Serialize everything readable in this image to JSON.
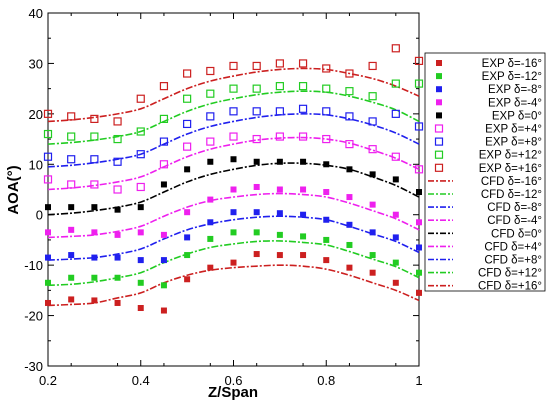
{
  "chart_data": {
    "type": "scatter",
    "xlabel": "Z/Span",
    "ylabel": "AOA(°)",
    "xlim": [
      0.2,
      1.0
    ],
    "ylim": [
      -30,
      40
    ],
    "xticks": [
      "0.2",
      "0.4",
      "0.6",
      "0.8",
      "1"
    ],
    "yticks": [
      "-30",
      "-20",
      "-10",
      "0",
      "10",
      "20",
      "30",
      "40"
    ],
    "legend_position": "right",
    "grid": false,
    "series": [
      {
        "name": "EXP δ=-16°",
        "kind": "marker",
        "fill": "filled",
        "color": "#cc2020",
        "x": [
          0.2,
          0.25,
          0.3,
          0.35,
          0.4,
          0.45,
          0.5,
          0.55,
          0.6,
          0.65,
          0.7,
          0.75,
          0.8,
          0.85,
          0.9,
          0.95,
          1.0
        ],
        "y": [
          -17.5,
          -16.8,
          -17,
          -17.5,
          -18.5,
          -19,
          -12.8,
          -10.5,
          -9.5,
          -7.8,
          -8,
          -8,
          -9,
          -10.5,
          -11.5,
          -13.5,
          -15.5
        ]
      },
      {
        "name": "EXP δ=-12°",
        "kind": "marker",
        "fill": "filled",
        "color": "#22cc22",
        "x": [
          0.2,
          0.25,
          0.3,
          0.35,
          0.4,
          0.45,
          0.5,
          0.55,
          0.6,
          0.65,
          0.7,
          0.75,
          0.8,
          0.85,
          0.9,
          0.95,
          1.0
        ],
        "y": [
          -13.5,
          -12.5,
          -12.5,
          -12.5,
          -13.5,
          -14,
          -8,
          -4.8,
          -3.5,
          -3.5,
          -4,
          -4.3,
          -5,
          -6,
          -8,
          -9.5,
          -11.5
        ]
      },
      {
        "name": "EXP δ=-8°",
        "kind": "marker",
        "fill": "filled",
        "color": "#2020ee",
        "x": [
          0.2,
          0.25,
          0.3,
          0.35,
          0.4,
          0.45,
          0.5,
          0.55,
          0.6,
          0.65,
          0.7,
          0.75,
          0.8,
          0.85,
          0.9,
          0.95,
          1.0
        ],
        "y": [
          -8.5,
          -8,
          -8.5,
          -8.5,
          -9,
          -9,
          -4.5,
          -1.5,
          0.5,
          0.5,
          0.3,
          0,
          -1,
          -2,
          -3.5,
          -4.5,
          -6.5
        ]
      },
      {
        "name": "EXP δ=-4°",
        "kind": "marker",
        "fill": "filled",
        "color": "#ee20ee",
        "x": [
          0.2,
          0.25,
          0.3,
          0.35,
          0.4,
          0.45,
          0.5,
          0.55,
          0.6,
          0.65,
          0.7,
          0.75,
          0.8,
          0.85,
          0.9,
          0.95,
          1.0
        ],
        "y": [
          -3.5,
          -3,
          -3.5,
          -4,
          -3.5,
          -4,
          0.5,
          3,
          5,
          5.5,
          5,
          5,
          4.5,
          3.5,
          2,
          0,
          -1.5
        ]
      },
      {
        "name": "EXP δ=0°",
        "kind": "marker",
        "fill": "filled",
        "color": "#000000",
        "x": [
          0.2,
          0.25,
          0.3,
          0.35,
          0.4,
          0.45,
          0.5,
          0.55,
          0.6,
          0.65,
          0.7,
          0.75,
          0.8,
          0.85,
          0.9,
          0.95,
          1.0
        ],
        "y": [
          1.5,
          1.5,
          1.5,
          1,
          1.5,
          6,
          9,
          10.5,
          11,
          10.5,
          10.5,
          10.5,
          10,
          9,
          8,
          7,
          4.5
        ]
      },
      {
        "name": "EXP δ=+4°",
        "kind": "marker",
        "fill": "hollow",
        "color": "#ee20ee",
        "x": [
          0.2,
          0.25,
          0.3,
          0.35,
          0.4,
          0.45,
          0.5,
          0.55,
          0.6,
          0.65,
          0.7,
          0.75,
          0.8,
          0.85,
          0.9,
          0.95,
          1.0
        ],
        "y": [
          7,
          6,
          6,
          5,
          5.5,
          10,
          13.5,
          14.5,
          15.5,
          15,
          15.5,
          15.5,
          15,
          14,
          13,
          11.5,
          9
        ]
      },
      {
        "name": "EXP δ=+8°",
        "kind": "marker",
        "fill": "hollow",
        "color": "#2020ee",
        "x": [
          0.2,
          0.25,
          0.3,
          0.35,
          0.4,
          0.45,
          0.5,
          0.55,
          0.6,
          0.65,
          0.7,
          0.75,
          0.8,
          0.85,
          0.9,
          0.95,
          1.0
        ],
        "y": [
          11.5,
          11,
          11,
          10.5,
          12,
          14.5,
          18,
          19.5,
          20.5,
          20.5,
          20.5,
          21,
          20.5,
          19.5,
          18.5,
          20,
          17.5
        ]
      },
      {
        "name": "EXP δ=+12°",
        "kind": "marker",
        "fill": "hollow",
        "color": "#22cc22",
        "x": [
          0.2,
          0.25,
          0.3,
          0.35,
          0.4,
          0.45,
          0.5,
          0.55,
          0.6,
          0.65,
          0.7,
          0.75,
          0.8,
          0.85,
          0.9,
          0.95,
          1.0
        ],
        "y": [
          16,
          15.5,
          15.5,
          15,
          16.5,
          19,
          23,
          24,
          25,
          25,
          25.5,
          25.5,
          25,
          24.5,
          23.5,
          26,
          26
        ]
      },
      {
        "name": "EXP δ=+16°",
        "kind": "marker",
        "fill": "hollow",
        "color": "#cc2020",
        "x": [
          0.2,
          0.25,
          0.3,
          0.35,
          0.4,
          0.45,
          0.5,
          0.55,
          0.6,
          0.65,
          0.7,
          0.75,
          0.8,
          0.85,
          0.9,
          0.95,
          1.0
        ],
        "y": [
          20,
          19.5,
          19,
          18.5,
          23,
          25.5,
          28,
          28.5,
          29.5,
          29.5,
          30,
          30,
          29,
          28,
          29.5,
          33,
          30.5
        ]
      },
      {
        "name": "CFD δ=-16°",
        "kind": "line",
        "color": "#cc2020",
        "x": [
          0.2,
          0.25,
          0.3,
          0.35,
          0.4,
          0.45,
          0.5,
          0.55,
          0.6,
          0.65,
          0.7,
          0.75,
          0.8,
          0.85,
          0.9,
          0.95,
          1.0
        ],
        "y": [
          -18,
          -17.8,
          -17.5,
          -16.5,
          -15.5,
          -13.5,
          -12,
          -11,
          -10.5,
          -10.2,
          -10,
          -10.2,
          -10.8,
          -12,
          -13.5,
          -15,
          -17
        ]
      },
      {
        "name": "CFD δ=-12°",
        "kind": "line",
        "color": "#22cc22",
        "x": [
          0.2,
          0.25,
          0.3,
          0.35,
          0.4,
          0.45,
          0.5,
          0.55,
          0.6,
          0.65,
          0.7,
          0.75,
          0.8,
          0.85,
          0.9,
          0.95,
          1.0
        ],
        "y": [
          -14,
          -13.8,
          -13.3,
          -12.5,
          -11.5,
          -9.5,
          -7.8,
          -6.5,
          -5.8,
          -5.3,
          -5.2,
          -5.5,
          -6,
          -7.3,
          -8.8,
          -10.3,
          -12.5
        ]
      },
      {
        "name": "CFD δ=-8°",
        "kind": "line",
        "color": "#2020ee",
        "x": [
          0.2,
          0.25,
          0.3,
          0.35,
          0.4,
          0.45,
          0.5,
          0.55,
          0.6,
          0.65,
          0.7,
          0.75,
          0.8,
          0.85,
          0.9,
          0.95,
          1.0
        ],
        "y": [
          -9,
          -8.8,
          -8.5,
          -7.8,
          -6.8,
          -4.8,
          -3,
          -1.8,
          -1,
          -0.5,
          -0.3,
          -0.5,
          -1,
          -2.3,
          -3.8,
          -5.3,
          -7.5
        ]
      },
      {
        "name": "CFD δ=-4°",
        "kind": "line",
        "color": "#ee20ee",
        "x": [
          0.2,
          0.25,
          0.3,
          0.35,
          0.4,
          0.45,
          0.5,
          0.55,
          0.6,
          0.65,
          0.7,
          0.75,
          0.8,
          0.85,
          0.9,
          0.95,
          1.0
        ],
        "y": [
          -4.5,
          -4.3,
          -4,
          -3.3,
          -2.3,
          -0.3,
          1.5,
          2.8,
          3.5,
          4,
          4.2,
          4,
          3.5,
          2.3,
          0.8,
          -0.8,
          -3
        ]
      },
      {
        "name": "CFD δ=0°",
        "kind": "line",
        "color": "#000000",
        "x": [
          0.2,
          0.25,
          0.3,
          0.35,
          0.4,
          0.45,
          0.5,
          0.55,
          0.6,
          0.65,
          0.7,
          0.75,
          0.8,
          0.85,
          0.9,
          0.95,
          1.0
        ],
        "y": [
          0,
          0.3,
          0.8,
          1.5,
          2.5,
          4.5,
          6.5,
          8,
          9,
          9.8,
          10.2,
          10.2,
          9.8,
          9,
          7.5,
          5.8,
          3.5
        ]
      },
      {
        "name": "CFD δ=+4°",
        "kind": "line",
        "color": "#ee20ee",
        "x": [
          0.2,
          0.25,
          0.3,
          0.35,
          0.4,
          0.45,
          0.5,
          0.55,
          0.6,
          0.65,
          0.7,
          0.75,
          0.8,
          0.85,
          0.9,
          0.95,
          1.0
        ],
        "y": [
          5,
          5.3,
          5.8,
          6.5,
          7.5,
          9.5,
          11.5,
          13,
          14,
          14.8,
          15.2,
          15.3,
          15,
          14.2,
          12.8,
          11.2,
          9
        ]
      },
      {
        "name": "CFD δ=+8°",
        "kind": "line",
        "color": "#2020ee",
        "x": [
          0.2,
          0.25,
          0.3,
          0.35,
          0.4,
          0.45,
          0.5,
          0.55,
          0.6,
          0.65,
          0.7,
          0.75,
          0.8,
          0.85,
          0.9,
          0.95,
          1.0
        ],
        "y": [
          9.5,
          9.8,
          10.3,
          11,
          12,
          14,
          16,
          17.5,
          18.5,
          19.3,
          19.8,
          20,
          19.8,
          19,
          17.8,
          16.2,
          14
        ]
      },
      {
        "name": "CFD δ=+12°",
        "kind": "line",
        "color": "#22cc22",
        "x": [
          0.2,
          0.25,
          0.3,
          0.35,
          0.4,
          0.45,
          0.5,
          0.55,
          0.6,
          0.65,
          0.7,
          0.75,
          0.8,
          0.85,
          0.9,
          0.95,
          1.0
        ],
        "y": [
          14,
          14.3,
          14.8,
          15.5,
          16.5,
          18.5,
          20.5,
          22,
          23,
          23.8,
          24.3,
          24.5,
          24.3,
          23.5,
          22.3,
          20.8,
          18.5
        ]
      },
      {
        "name": "CFD δ=+16°",
        "kind": "line",
        "color": "#cc2020",
        "x": [
          0.2,
          0.25,
          0.3,
          0.35,
          0.4,
          0.45,
          0.5,
          0.55,
          0.6,
          0.65,
          0.7,
          0.75,
          0.8,
          0.85,
          0.9,
          0.95,
          1.0
        ],
        "y": [
          18.5,
          18.8,
          19.3,
          20,
          21,
          23,
          25,
          26.5,
          27.5,
          28.3,
          28.8,
          29,
          28.8,
          28,
          27,
          25.5,
          23.5
        ]
      }
    ]
  }
}
